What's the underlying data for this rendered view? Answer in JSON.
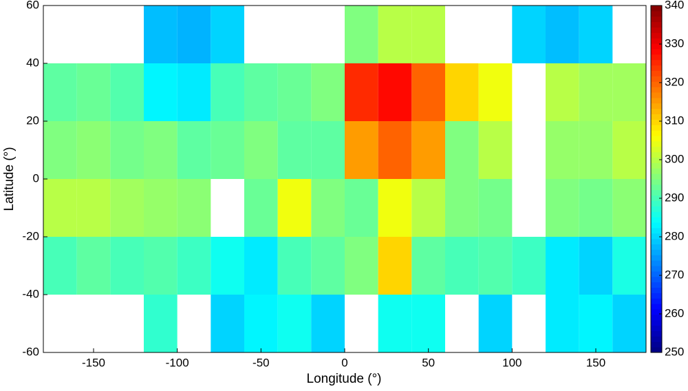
{
  "chart_data": {
    "type": "heatmap",
    "x_label": "Longitude (°)",
    "y_label": "Latitude (°)",
    "lon_bins": [
      -180,
      -160,
      -140,
      -120,
      -100,
      -80,
      -60,
      -40,
      -20,
      0,
      20,
      40,
      60,
      80,
      100,
      120,
      140,
      160,
      180
    ],
    "lat_bins": [
      60,
      40,
      20,
      0,
      -20,
      -40,
      -60
    ],
    "values": [
      [
        null,
        null,
        null,
        278,
        277,
        280,
        null,
        null,
        null,
        295,
        300,
        300,
        null,
        null,
        280,
        278,
        280,
        null
      ],
      [
        292,
        293,
        291,
        283,
        282,
        290,
        292,
        293,
        295,
        325,
        328,
        320,
        310,
        305,
        null,
        300,
        298,
        298
      ],
      [
        295,
        296,
        294,
        295,
        292,
        293,
        295,
        292,
        292,
        315,
        320,
        315,
        295,
        300,
        null,
        297,
        297,
        300
      ],
      [
        300,
        300,
        298,
        297,
        296,
        null,
        293,
        305,
        295,
        293,
        305,
        300,
        295,
        294,
        null,
        295,
        294,
        296
      ],
      [
        290,
        292,
        290,
        291,
        289,
        285,
        282,
        290,
        292,
        295,
        310,
        292,
        290,
        291,
        289,
        282,
        280,
        286
      ],
      [
        null,
        null,
        null,
        288,
        null,
        280,
        283,
        285,
        280,
        null,
        285,
        285,
        null,
        280,
        null,
        282,
        283,
        280
      ]
    ],
    "xlim": [
      -180,
      180
    ],
    "ylim": [
      -60,
      60
    ],
    "xticks": [
      -150,
      -100,
      -50,
      0,
      50,
      100,
      150
    ],
    "yticks": [
      -60,
      -40,
      -20,
      0,
      20,
      40,
      60
    ],
    "colormap": "jet",
    "clim": [
      250,
      340
    ],
    "cticks": [
      250,
      260,
      270,
      280,
      290,
      300,
      310,
      320,
      330,
      340
    ]
  }
}
